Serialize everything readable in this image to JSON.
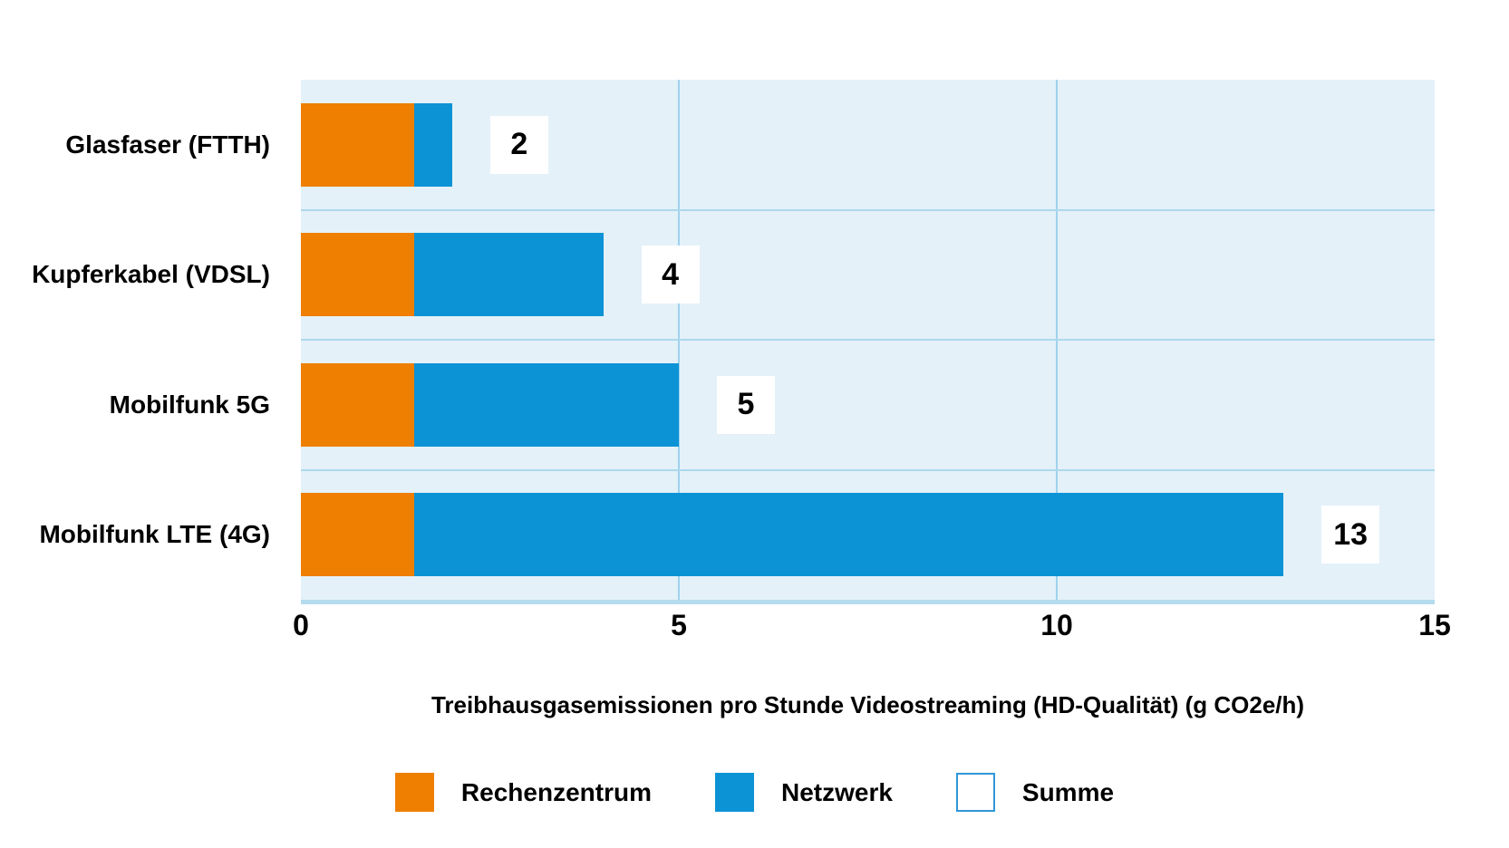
{
  "chart_data": {
    "type": "bar",
    "orientation": "horizontal",
    "stacked": true,
    "title": "",
    "xlabel": "Treibhausgasemissionen pro Stunde Videostreaming (HD-Qualität) (g CO2e/h)",
    "ylabel": "",
    "categories": [
      "Glasfaser (FTTH)",
      "Kupferkabel (VDSL)",
      "Mobilfunk 5G",
      "Mobilfunk LTE (4G)"
    ],
    "series": [
      {
        "name": "Rechenzentrum",
        "color_key": "rechenzentrum",
        "values": [
          1.5,
          1.5,
          1.5,
          1.5
        ]
      },
      {
        "name": "Netzwerk",
        "color_key": "netzwerk",
        "values": [
          0.5,
          2.5,
          3.5,
          11.5
        ]
      }
    ],
    "totals": [
      2,
      4,
      5,
      13
    ],
    "total_label_name": "Summe",
    "xlim": [
      0,
      15
    ],
    "xticks": [
      0,
      5,
      10,
      15
    ],
    "grid": true,
    "legend_position": "bottom"
  },
  "legend": {
    "items": [
      {
        "label": "Rechenzentrum",
        "swatch": "rechenzentrum"
      },
      {
        "label": "Netzwerk",
        "swatch": "netzwerk"
      },
      {
        "label": "Summe",
        "swatch": "summe"
      }
    ]
  },
  "colors": {
    "rechenzentrum": "#EE7F00",
    "netzwerk": "#0C93D5",
    "plot_background": "#E4F1F9",
    "gridline_vertical": "#9ED2EE",
    "row_separator": "#ADD8EC",
    "baseline": "#B5DCEE",
    "summe_border": "#2F97D7",
    "summe_fill": "#FFFFFF",
    "text": "#000000"
  }
}
